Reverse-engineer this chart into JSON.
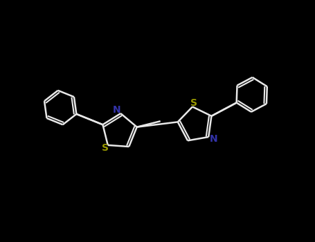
{
  "bg_color": "#000000",
  "bond_color": "#e8e8e8",
  "S_color": "#999900",
  "N_color": "#3333aa",
  "bond_width": 1.8,
  "font_size": 10,
  "fig_width": 4.55,
  "fig_height": 3.5,
  "dpi": 100,
  "xlim": [
    0,
    9
  ],
  "ylim": [
    0,
    7
  ]
}
